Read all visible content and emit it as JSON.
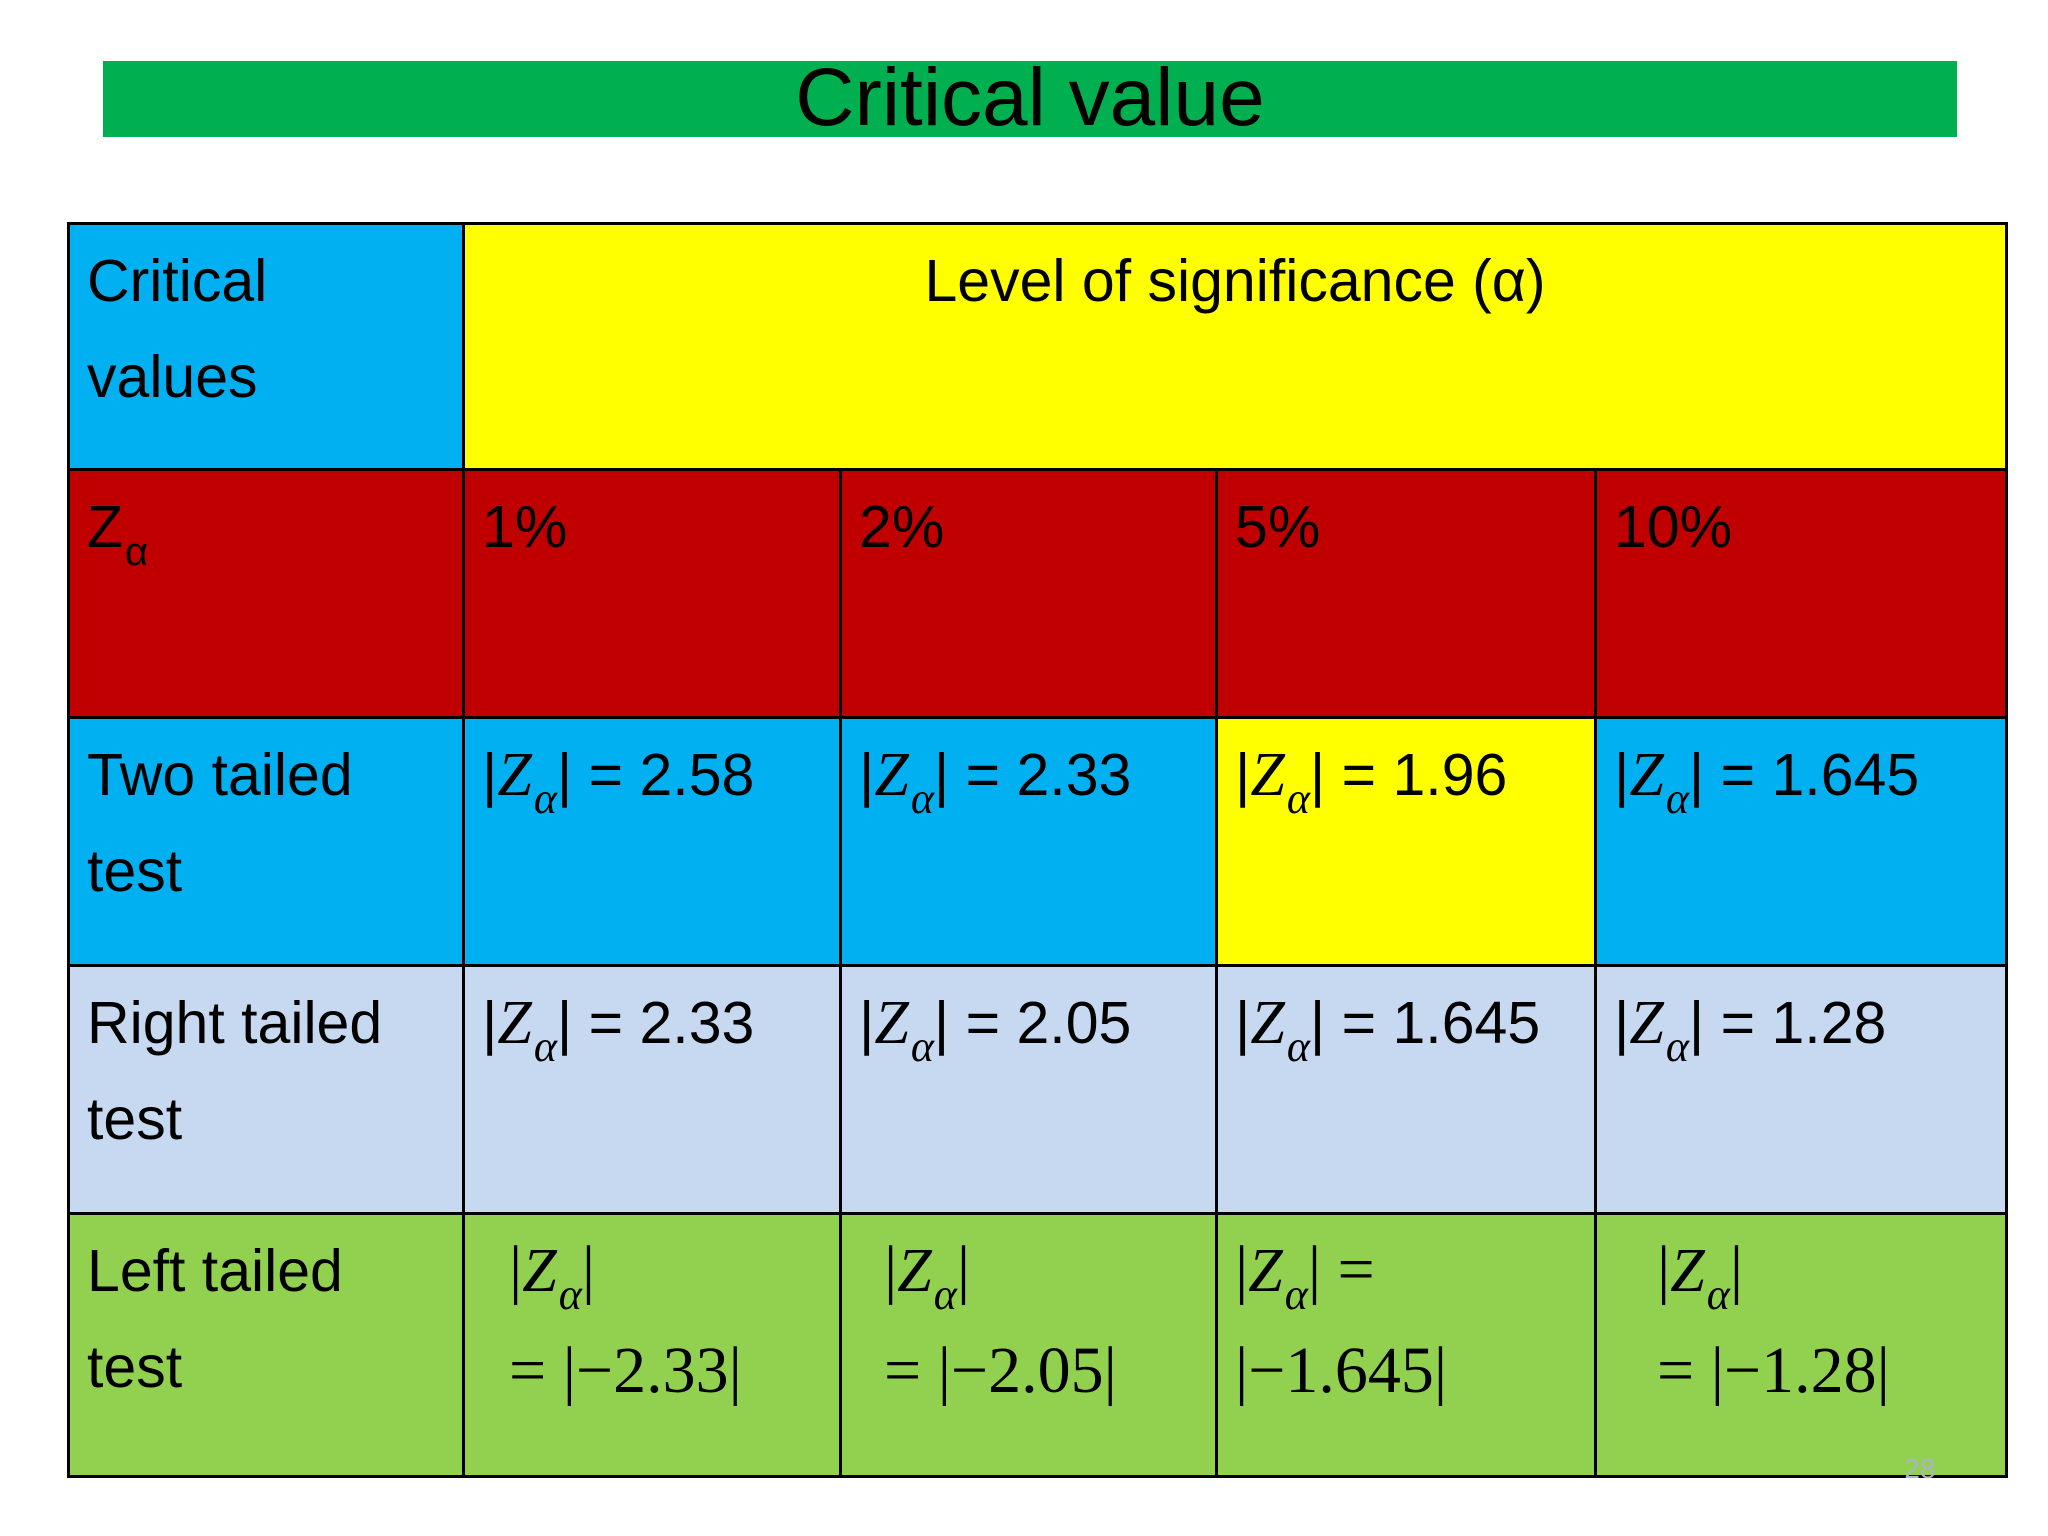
{
  "slide": {
    "title": "Critical value",
    "page_number": "28"
  },
  "table": {
    "header": {
      "corner_label": "Critical values",
      "corner_line1": "Critical",
      "corner_line2": "values",
      "significance_label": "Level of significance (α)"
    },
    "alpha_row": {
      "label_symbol": "Z",
      "label_subscript": "α",
      "levels": [
        "1%",
        "2%",
        "5%",
        "10%"
      ]
    },
    "rows": [
      {
        "label_line1": "Two tailed",
        "label_line2": "test",
        "values": [
          "= 2.58",
          "= 2.33",
          "= 1.96",
          "= 1.645"
        ]
      },
      {
        "label_line1": "Right tailed",
        "label_line2": "test",
        "values": [
          "= 2.33",
          "= 2.05",
          "= 1.645",
          "= 1.28"
        ]
      },
      {
        "label_line1": "Left tailed",
        "label_line2": "test",
        "values": [
          "= |−2.33|",
          "= |−2.05|",
          "|−1.645|",
          "= |−1.28|"
        ],
        "value_prefix_5pct": "="
      }
    ]
  },
  "colors": {
    "title_bar": "#00b050",
    "blue": "#00b0f0",
    "yellow": "#ffff00",
    "red": "#c00000",
    "light_blue": "#c6d9f1",
    "green": "#92d050"
  }
}
